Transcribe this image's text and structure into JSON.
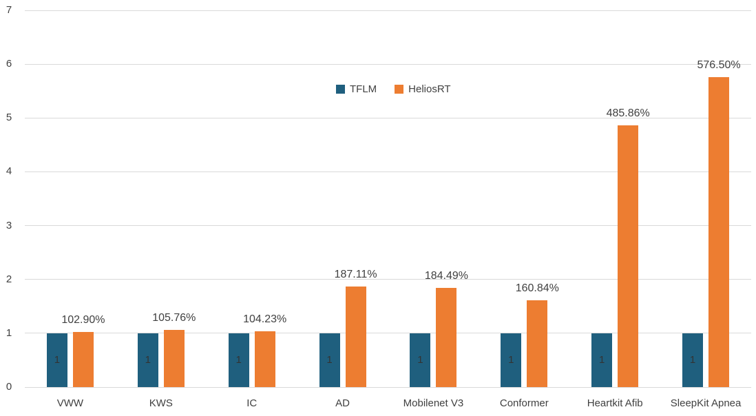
{
  "chart_data": {
    "type": "bar",
    "title": "",
    "xlabel": "",
    "ylabel": "",
    "categories": [
      "VWW",
      "KWS",
      "IC",
      "AD",
      "Mobilenet V3",
      "Conformer",
      "Heartkit Afib",
      "SleepKit Apnea"
    ],
    "series": [
      {
        "name": "TFLM",
        "color": "#1f5f7e",
        "values": [
          1,
          1,
          1,
          1,
          1,
          1,
          1,
          1
        ],
        "labels": [
          "1",
          "1",
          "1",
          "1",
          "1",
          "1",
          "1",
          "1"
        ],
        "label_placement": "inside-center"
      },
      {
        "name": "HeliosRT",
        "color": "#ed7d31",
        "values": [
          1.029,
          1.0576,
          1.0423,
          1.8711,
          1.8449,
          1.6084,
          4.8586,
          5.765
        ],
        "labels": [
          "102.90%",
          "105.76%",
          "104.23%",
          "187.11%",
          "184.49%",
          "160.84%",
          "485.86%",
          "576.50%"
        ],
        "label_placement": "above"
      }
    ],
    "ylim": [
      0,
      7
    ],
    "yticks": [
      0,
      1,
      2,
      3,
      4,
      5,
      6,
      7
    ],
    "grid": true,
    "legend_position": "top-center-inside",
    "gridline_color": "#d9d9d9",
    "text_color": "#404040",
    "background_color": "#ffffff"
  }
}
